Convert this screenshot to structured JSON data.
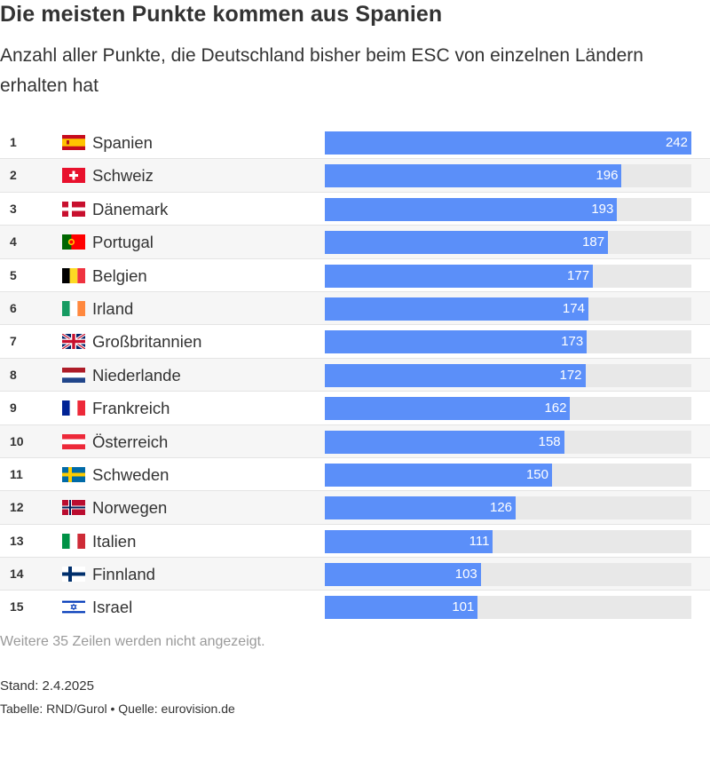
{
  "title": "Die meisten Punkte kommen aus Spanien",
  "subtitle": "Anzahl aller Punkte, die Deutschland bisher beim ESC von einzelnen Ländern erhalten hat",
  "chart_data": {
    "type": "bar",
    "orientation": "horizontal",
    "title": "Die meisten Punkte kommen aus Spanien",
    "subtitle": "Anzahl aller Punkte, die Deutschland bisher beim ESC von einzelnen Ländern erhalten hat",
    "xlim": [
      0,
      242
    ],
    "grid": false,
    "rows": [
      {
        "rank": "1",
        "country": "Spanien",
        "flag": "spain-flag",
        "value": 242
      },
      {
        "rank": "2",
        "country": "Schweiz",
        "flag": "switzerland-flag",
        "value": 196
      },
      {
        "rank": "3",
        "country": "Dänemark",
        "flag": "denmark-flag",
        "value": 193
      },
      {
        "rank": "4",
        "country": "Portugal",
        "flag": "portugal-flag",
        "value": 187
      },
      {
        "rank": "5",
        "country": "Belgien",
        "flag": "belgium-flag",
        "value": 177
      },
      {
        "rank": "6",
        "country": "Irland",
        "flag": "ireland-flag",
        "value": 174
      },
      {
        "rank": "7",
        "country": "Großbritannien",
        "flag": "uk-flag",
        "value": 173
      },
      {
        "rank": "8",
        "country": "Niederlande",
        "flag": "netherlands-flag",
        "value": 172
      },
      {
        "rank": "9",
        "country": "Frankreich",
        "flag": "france-flag",
        "value": 162
      },
      {
        "rank": "10",
        "country": "Österreich",
        "flag": "austria-flag",
        "value": 158
      },
      {
        "rank": "11",
        "country": "Schweden",
        "flag": "sweden-flag",
        "value": 150
      },
      {
        "rank": "12",
        "country": "Norwegen",
        "flag": "norway-flag",
        "value": 126
      },
      {
        "rank": "13",
        "country": "Italien",
        "flag": "italy-flag",
        "value": 111
      },
      {
        "rank": "14",
        "country": "Finnland",
        "flag": "finland-flag",
        "value": 103
      },
      {
        "rank": "15",
        "country": "Israel",
        "flag": "israel-flag",
        "value": 101
      }
    ]
  },
  "colors": {
    "bar": "#5b8ff9",
    "track": "#e8e8e8",
    "row_alt": "#f6f6f6",
    "text": "#333333",
    "muted": "#9a9a9a"
  },
  "footer": {
    "hidden_rows_note": "Weitere 35 Zeilen werden nicht angezeigt.",
    "stand": "Stand: 2.4.2025",
    "source": "Tabelle: RND/Gurol • Quelle: eurovision.de"
  }
}
